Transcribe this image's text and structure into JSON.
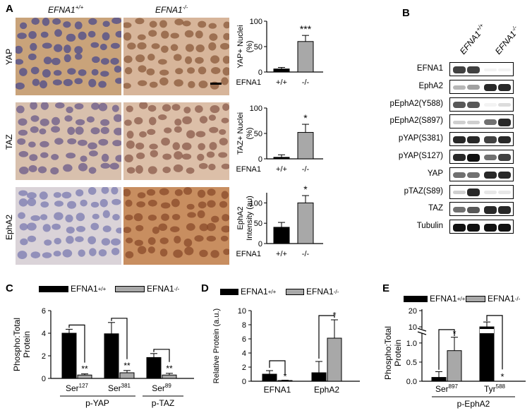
{
  "panelA": {
    "letter": "A",
    "genotypes": [
      "EFNA1",
      "EFNA1"
    ],
    "genotype_sups": [
      "+/+",
      "-/-"
    ],
    "rows": [
      "YAP",
      "TAZ",
      "EphA2"
    ]
  },
  "panelB": {
    "letter": "B",
    "genotypes": [
      "EFNA1",
      "EFNA1"
    ],
    "genotype_sups": [
      "+/+",
      "-/-"
    ],
    "blots": [
      "EFNA1",
      "EphA2",
      "pEphA2(Y588)",
      "pEphA2(S897)",
      "pYAP(S381)",
      "pYAP(S127)",
      "YAP",
      "pTAZ(S89)",
      "TAZ",
      "Tubulin"
    ],
    "band_intensity": [
      [
        0.8,
        0.8,
        0.05,
        0.05
      ],
      [
        0.3,
        0.4,
        0.9,
        0.9
      ],
      [
        0.7,
        0.7,
        0.05,
        0.15
      ],
      [
        0.2,
        0.2,
        0.6,
        0.9
      ],
      [
        0.9,
        0.9,
        0.8,
        0.9
      ],
      [
        0.9,
        1.0,
        0.6,
        0.8
      ],
      [
        0.6,
        0.6,
        0.9,
        0.9
      ],
      [
        0.2,
        0.9,
        0.1,
        0.1
      ],
      [
        0.6,
        0.7,
        0.9,
        0.9
      ],
      [
        1.0,
        1.0,
        1.0,
        1.0
      ]
    ]
  },
  "colors": {
    "wt": "#000000",
    "ko": "#a8a8a8"
  },
  "chart_data": [
    {
      "type": "bar",
      "ylabel": "YAP+ Nuclei (%)",
      "xlabel": "EFNA1",
      "categories": [
        "+/+",
        "-/-"
      ],
      "values": [
        6,
        60
      ],
      "errors": [
        3,
        12
      ],
      "ylim": [
        0,
        100
      ],
      "yticks": [
        "0",
        "50",
        "100"
      ],
      "significance": "***"
    },
    {
      "type": "bar",
      "ylabel": "TAZ+ Nuclei (%)",
      "xlabel": "EFNA1",
      "categories": [
        "+/+",
        "-/-"
      ],
      "values": [
        3,
        52
      ],
      "errors": [
        5,
        16
      ],
      "ylim": [
        0,
        100
      ],
      "yticks": [
        "0",
        "50",
        "100"
      ],
      "significance": "*"
    },
    {
      "type": "bar",
      "ylabel": "EphA2 Intensity (au)",
      "xlabel": "EFNA1",
      "categories": [
        "+/+",
        "-/-"
      ],
      "values": [
        40,
        100
      ],
      "errors": [
        12,
        18
      ],
      "ylim": [
        0,
        125
      ],
      "yticks": [
        "0",
        "50",
        "100"
      ],
      "significance": "*"
    },
    {
      "type": "bar",
      "panel": "C",
      "ylabel": "Phospho:Total Protein",
      "ylim": [
        0,
        6
      ],
      "yticks": [
        "0",
        "2",
        "4",
        "6"
      ],
      "legend": [
        "EFNA1",
        "EFNA1"
      ],
      "legend_sups": [
        "+/+",
        "-/-"
      ],
      "categories": [
        "Ser127",
        "Ser381",
        "Ser89"
      ],
      "category_base": [
        "Ser",
        "Ser",
        "Ser"
      ],
      "category_sup": [
        "127",
        "381",
        "89"
      ],
      "groups": [
        "p-YAP",
        "p-TAZ"
      ],
      "series": [
        {
          "values": [
            4.0,
            3.95,
            1.85
          ],
          "errors": [
            0.35,
            1.0,
            0.35
          ]
        },
        {
          "values": [
            0.3,
            0.5,
            0.3
          ],
          "errors": [
            0.1,
            0.2,
            0.15
          ]
        }
      ],
      "significance": [
        "**",
        "**",
        "**"
      ]
    },
    {
      "type": "bar",
      "panel": "D",
      "ylabel": "Relative Protein (a.u.)",
      "ylim": [
        0,
        10
      ],
      "yticks": [
        "0",
        "2",
        "4",
        "6",
        "8",
        "10"
      ],
      "legend": [
        "EFNA1",
        "EFNA1"
      ],
      "legend_sups": [
        "+/+",
        "-/-"
      ],
      "categories": [
        "EFNA1",
        "EphA2"
      ],
      "series": [
        {
          "values": [
            1.0,
            1.2
          ],
          "errors": [
            0.5,
            1.6
          ]
        },
        {
          "values": [
            0.1,
            6.1
          ],
          "errors": [
            0.05,
            2.6
          ]
        }
      ],
      "significance": [
        "*",
        "*"
      ]
    },
    {
      "type": "bar",
      "panel": "E",
      "ylabel": "Phospho:Total Protein",
      "yticks": [
        "0.0",
        "0.5",
        "1.0",
        "10",
        "20"
      ],
      "legend": [
        "EFNA1",
        "EFNA1"
      ],
      "legend_sups": [
        "+/+",
        "-/-"
      ],
      "categories": [
        "Ser897",
        "Tyr588"
      ],
      "category_base": [
        "Ser",
        "Tyr"
      ],
      "category_sup": [
        "897",
        "588"
      ],
      "group": "p-EphA2",
      "series": [
        {
          "values": [
            0.1,
            9.0
          ],
          "errors": [
            0.15,
            4.0
          ]
        },
        {
          "values": [
            0.8,
            0.0
          ],
          "errors": [
            0.35,
            0.0
          ]
        }
      ],
      "significance": [
        "*",
        "*"
      ]
    }
  ]
}
